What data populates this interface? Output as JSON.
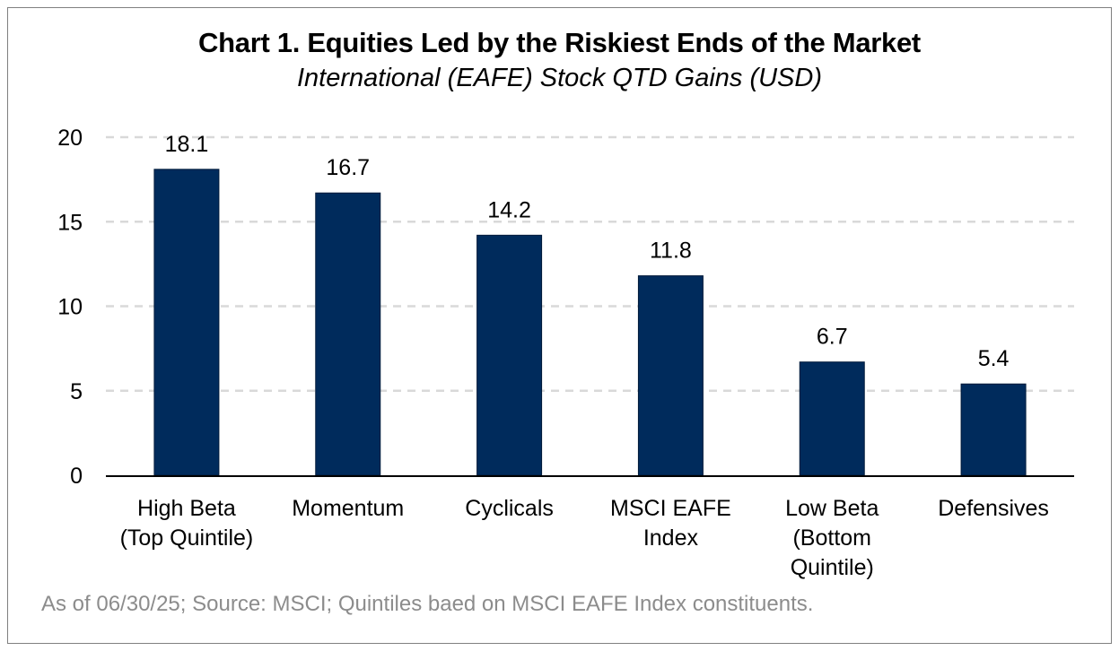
{
  "chart_data": {
    "type": "bar",
    "title": "Chart 1. Equities Led by the Riskiest Ends of the Market",
    "subtitle": "International (EAFE) Stock QTD Gains (USD)",
    "categories": [
      [
        "High Beta",
        "(Top Quintile)"
      ],
      [
        "Momentum"
      ],
      [
        "Cyclicals"
      ],
      [
        "MSCI EAFE",
        "Index"
      ],
      [
        "Low Beta",
        "(Bottom",
        "Quintile)"
      ],
      [
        "Defensives"
      ]
    ],
    "values": [
      18.1,
      16.7,
      14.2,
      11.8,
      6.7,
      5.4
    ],
    "data_labels": [
      "18.1",
      "16.7",
      "14.2",
      "11.8",
      "6.7",
      "5.4"
    ],
    "yticks": [
      "0",
      "5",
      "10",
      "15",
      "20"
    ],
    "ylim": [
      0,
      20
    ],
    "xlabel": "",
    "ylabel": "",
    "grid": "horizontal dashed",
    "legend": "none",
    "bar_color": "#002b5c",
    "grid_color": "#d9d9d9",
    "axis_color": "#000000"
  },
  "footnote": "As of 06/30/25; Source: MSCI; Quintiles baed on MSCI EAFE Index constituents."
}
